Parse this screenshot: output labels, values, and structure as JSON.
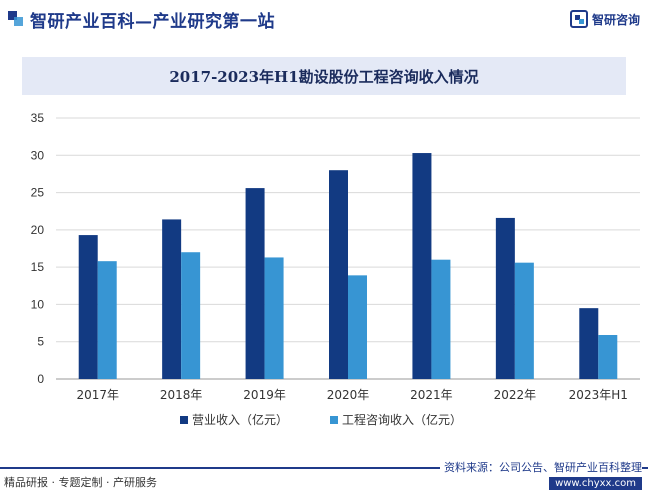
{
  "header": {
    "site_name": "智研产业百科—产业研究第一站",
    "brand_name": "智研咨询",
    "accent_color": "#1f3a8a"
  },
  "chart_data": {
    "type": "bar",
    "title": "2017-2023年H1勘设股份工程咨询收入情况",
    "categories": [
      "2017年",
      "2018年",
      "2019年",
      "2020年",
      "2021年",
      "2022年",
      "2023年H1"
    ],
    "series": [
      {
        "name": "营业收入（亿元）",
        "color": "#123a82",
        "values": [
          19.3,
          21.4,
          25.6,
          28.0,
          30.3,
          21.6,
          9.5
        ]
      },
      {
        "name": "工程咨询收入（亿元）",
        "color": "#3795d3",
        "values": [
          15.8,
          17.0,
          16.3,
          13.9,
          16.0,
          15.6,
          5.9
        ]
      }
    ],
    "xlabel": "",
    "ylabel": "",
    "ylim": [
      0,
      35
    ],
    "yticks": [
      0,
      5,
      10,
      15,
      20,
      25,
      30,
      35
    ],
    "grid": true,
    "legend_position": "bottom"
  },
  "footer": {
    "services": "精品研报 · 专题定制 · 产研服务",
    "source": "资料来源：公司公告、智研产业百科整理",
    "url": "www.chyxx.com"
  }
}
